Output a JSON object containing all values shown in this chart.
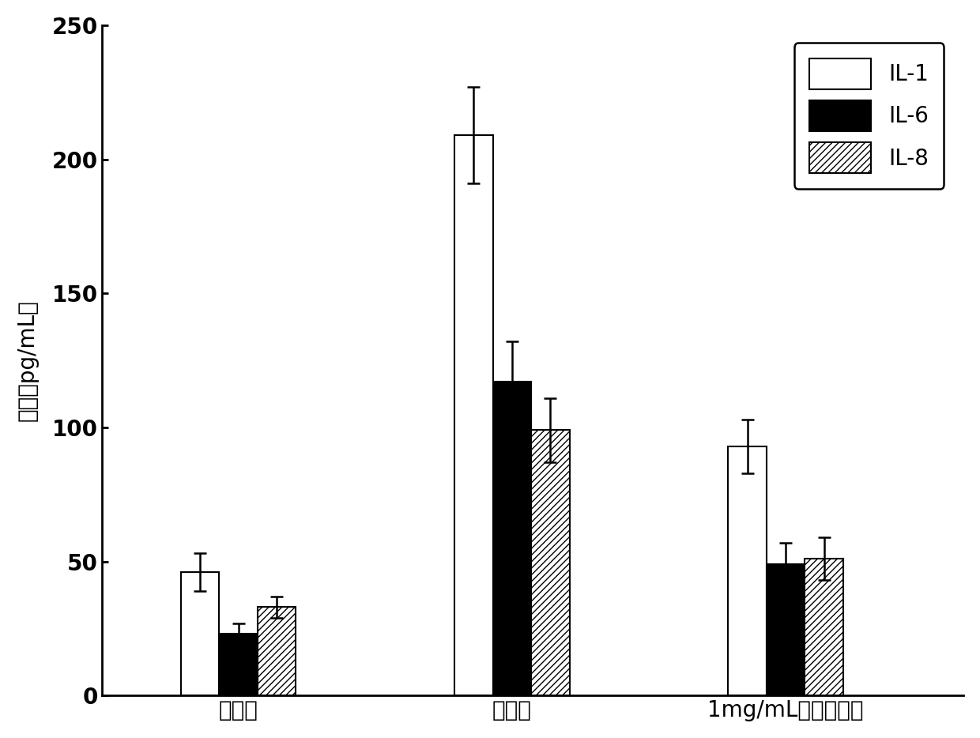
{
  "groups": [
    "正常组",
    "模型组",
    "1mg/mL免疫调节肽"
  ],
  "series": [
    "IL-1",
    "IL-6",
    "IL-8"
  ],
  "values": [
    [
      46,
      23,
      33
    ],
    [
      209,
      117,
      99
    ],
    [
      93,
      49,
      51
    ]
  ],
  "errors": [
    [
      7,
      4,
      4
    ],
    [
      18,
      15,
      12
    ],
    [
      10,
      8,
      8
    ]
  ],
  "ylabel": "浓度（pg/mL）",
  "ylim": [
    0,
    250
  ],
  "yticks": [
    0,
    50,
    100,
    150,
    200,
    250
  ],
  "bar_colors": [
    "white",
    "black",
    "white"
  ],
  "bar_hatches": [
    "",
    "",
    "////"
  ],
  "bar_edgecolors": [
    "black",
    "black",
    "black"
  ],
  "legend_labels": [
    "IL-1",
    "IL-6",
    "IL-8"
  ],
  "bar_width": 0.28,
  "group_centers": [
    1.0,
    3.0,
    5.0
  ],
  "xlim": [
    0.0,
    6.3
  ],
  "tick_fontsize": 20,
  "label_fontsize": 20
}
